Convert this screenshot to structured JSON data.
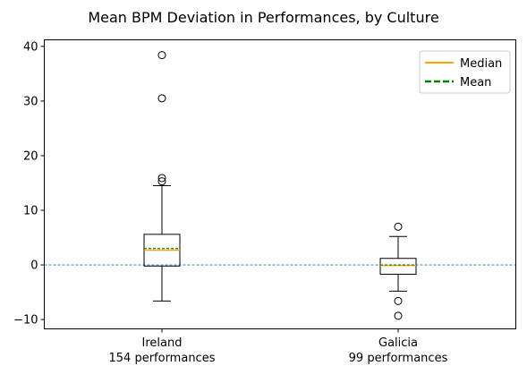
{
  "chart_data": {
    "type": "box",
    "title": "Mean BPM Deviation in Performances, by Culture",
    "xlabel": "",
    "ylabel": "",
    "ylim": [
      -11.7,
      41.2
    ],
    "yticks": [
      -10,
      0,
      10,
      20,
      30,
      40
    ],
    "grid": false,
    "reference_line": {
      "y": 0,
      "style": "dashed",
      "color": "#1f77b4"
    },
    "legend": {
      "placement": "top-right",
      "entries": [
        {
          "label": "Median",
          "color": "#ffa500",
          "style": "solid"
        },
        {
          "label": "Mean",
          "color": "#008000",
          "style": "dashed"
        }
      ]
    },
    "categories": [
      "Ireland",
      "Galicia"
    ],
    "category_sublabels": [
      "154 performances",
      "99 performances"
    ],
    "boxes": [
      {
        "category": "Ireland",
        "whisker_low": -6.6,
        "q1": -0.2,
        "median": 2.7,
        "mean": 3.0,
        "q3": 5.6,
        "whisker_high": 14.5,
        "outliers": [
          15.3,
          15.9,
          30.5,
          38.4
        ]
      },
      {
        "category": "Galicia",
        "whisker_low": -4.8,
        "q1": -1.7,
        "median": -0.1,
        "mean": 0.0,
        "q3": 1.2,
        "whisker_high": 5.2,
        "outliers": [
          7.0,
          -6.6,
          -9.3
        ]
      }
    ],
    "colors": {
      "median": "#ffa500",
      "mean": "#008000",
      "box": "#000000",
      "zero_line": "#1f77b4"
    }
  }
}
